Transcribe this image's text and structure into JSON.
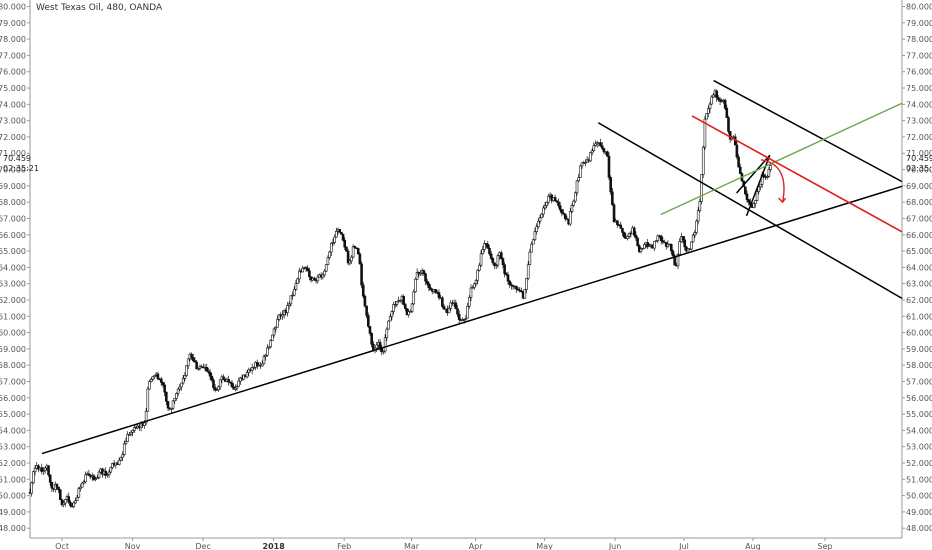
{
  "chart_data": {
    "type": "candlestick",
    "title": "West Texas Oil, 480, OANDA",
    "ylim": [
      47.4,
      80.4
    ],
    "yticks": [
      48.0,
      49.0,
      50.0,
      51.0,
      52.0,
      53.0,
      54.0,
      55.0,
      56.0,
      57.0,
      58.0,
      59.0,
      60.0,
      61.0,
      62.0,
      63.0,
      64.0,
      65.0,
      66.0,
      67.0,
      68.0,
      69.0,
      70.0,
      71.0,
      72.0,
      73.0,
      74.0,
      75.0,
      76.0,
      77.0,
      78.0,
      79.0,
      80.0
    ],
    "ytick_labels": [
      "48.000",
      "49.000",
      "50.000",
      "51.000",
      "52.000",
      "53.000",
      "54.000",
      "55.000",
      "56.000",
      "57.000",
      "58.000",
      "59.000",
      "60.000",
      "61.000",
      "62.000",
      "63.000",
      "64.000",
      "65.000",
      "66.000",
      "67.000",
      "68.000",
      "69.000",
      "70.000",
      "71.000",
      "72.000",
      "73.000",
      "74.000",
      "75.000",
      "76.000",
      "77.000",
      "78.000",
      "79.000",
      "80.000"
    ],
    "xlim": [
      0,
      54.4
    ],
    "xticks": [
      {
        "label": "Oct",
        "t": 2.0
      },
      {
        "label": "Nov",
        "t": 6.4
      },
      {
        "label": "Dec",
        "t": 10.8
      },
      {
        "label": "2018",
        "t": 15.2,
        "bold": true
      },
      {
        "label": "Feb",
        "t": 19.6
      },
      {
        "label": "Mar",
        "t": 23.8
      },
      {
        "label": "Apr",
        "t": 27.8
      },
      {
        "label": "May",
        "t": 32.1
      },
      {
        "label": "Jun",
        "t": 36.5
      },
      {
        "label": "Jul",
        "t": 40.8
      },
      {
        "label": "Aug",
        "t": 45.1
      },
      {
        "label": "Sep",
        "t": 49.6
      }
    ],
    "last_price": "70.459",
    "countdown": "02:35:21",
    "path": [
      [
        0,
        50.2
      ],
      [
        0.3,
        51.8
      ],
      [
        0.7,
        51.5
      ],
      [
        1.0,
        51.9
      ],
      [
        1.3,
        50.5
      ],
      [
        1.7,
        50.6
      ],
      [
        2.0,
        49.5
      ],
      [
        2.3,
        49.9
      ],
      [
        2.6,
        49.2
      ],
      [
        2.9,
        49.8
      ],
      [
        3.1,
        50.5
      ],
      [
        3.4,
        51.1
      ],
      [
        3.7,
        51.4
      ],
      [
        4.0,
        51.0
      ],
      [
        4.4,
        51.5
      ],
      [
        4.8,
        51.2
      ],
      [
        5.2,
        52.0
      ],
      [
        5.6,
        52.0
      ],
      [
        6.0,
        53.5
      ],
      [
        6.4,
        54.0
      ],
      [
        6.8,
        54.2
      ],
      [
        7.2,
        54.5
      ],
      [
        7.4,
        57.0
      ],
      [
        7.8,
        57.4
      ],
      [
        8.2,
        57.0
      ],
      [
        8.6,
        55.5
      ],
      [
        8.8,
        55.2
      ],
      [
        9.0,
        56.0
      ],
      [
        9.3,
        56.5
      ],
      [
        9.6,
        57.3
      ],
      [
        10.0,
        58.7
      ],
      [
        10.4,
        57.8
      ],
      [
        10.8,
        57.9
      ],
      [
        11.2,
        57.4
      ],
      [
        11.6,
        56.2
      ],
      [
        12.0,
        57.3
      ],
      [
        12.4,
        57.0
      ],
      [
        12.8,
        56.5
      ],
      [
        13.2,
        57.3
      ],
      [
        13.6,
        57.5
      ],
      [
        14.0,
        58.0
      ],
      [
        14.4,
        58.0
      ],
      [
        14.8,
        58.9
      ],
      [
        15.2,
        60.0
      ],
      [
        15.6,
        61.1
      ],
      [
        16.0,
        61.4
      ],
      [
        16.4,
        62.5
      ],
      [
        16.8,
        63.8
      ],
      [
        17.2,
        64.0
      ],
      [
        17.6,
        63.2
      ],
      [
        18.0,
        63.4
      ],
      [
        18.4,
        63.8
      ],
      [
        18.8,
        65.5
      ],
      [
        19.2,
        66.3
      ],
      [
        19.6,
        65.6
      ],
      [
        19.9,
        64.0
      ],
      [
        20.2,
        65.5
      ],
      [
        20.5,
        64.8
      ],
      [
        20.8,
        62.0
      ],
      [
        21.1,
        60.5
      ],
      [
        21.4,
        59.0
      ],
      [
        21.7,
        59.4
      ],
      [
        22.0,
        58.6
      ],
      [
        22.3,
        60.6
      ],
      [
        22.6,
        61.5
      ],
      [
        22.9,
        62.0
      ],
      [
        23.2,
        62.2
      ],
      [
        23.5,
        61.2
      ],
      [
        23.8,
        61.5
      ],
      [
        24.1,
        63.5
      ],
      [
        24.5,
        64.0
      ],
      [
        24.8,
        62.8
      ],
      [
        25.2,
        62.6
      ],
      [
        25.6,
        62.0
      ],
      [
        26.0,
        61.2
      ],
      [
        26.4,
        62.0
      ],
      [
        26.8,
        60.8
      ],
      [
        27.2,
        61.0
      ],
      [
        27.5,
        62.6
      ],
      [
        27.8,
        63.2
      ],
      [
        28.1,
        64.6
      ],
      [
        28.4,
        65.5
      ],
      [
        28.7,
        64.6
      ],
      [
        29.0,
        64.0
      ],
      [
        29.3,
        64.9
      ],
      [
        29.6,
        63.6
      ],
      [
        30.0,
        63.0
      ],
      [
        30.4,
        62.8
      ],
      [
        30.8,
        62.2
      ],
      [
        31.2,
        65.0
      ],
      [
        31.6,
        66.6
      ],
      [
        32.0,
        67.6
      ],
      [
        32.4,
        68.3
      ],
      [
        32.8,
        68.0
      ],
      [
        33.2,
        67.4
      ],
      [
        33.6,
        66.8
      ],
      [
        34.0,
        68.6
      ],
      [
        34.4,
        70.4
      ],
      [
        34.8,
        70.5
      ],
      [
        35.2,
        71.4
      ],
      [
        35.6,
        71.6
      ],
      [
        36.0,
        70.8
      ],
      [
        36.4,
        67.0
      ],
      [
        36.8,
        66.4
      ],
      [
        37.2,
        65.7
      ],
      [
        37.6,
        66.4
      ],
      [
        38.0,
        65.0
      ],
      [
        38.4,
        65.4
      ],
      [
        38.8,
        65.2
      ],
      [
        39.2,
        66.0
      ],
      [
        39.6,
        65.4
      ],
      [
        40.0,
        65.2
      ],
      [
        40.3,
        63.8
      ],
      [
        40.6,
        66.0
      ],
      [
        40.9,
        65.0
      ],
      [
        41.2,
        65.3
      ],
      [
        41.5,
        66.4
      ],
      [
        41.8,
        68.0
      ],
      [
        42.1,
        73.0
      ],
      [
        42.4,
        73.9
      ],
      [
        42.7,
        74.9
      ],
      [
        43.0,
        74.0
      ],
      [
        43.3,
        74.4
      ],
      [
        43.6,
        72.0
      ],
      [
        43.9,
        72.0
      ],
      [
        44.2,
        70.0
      ],
      [
        44.5,
        69.0
      ],
      [
        44.8,
        68.0
      ],
      [
        45.1,
        67.8
      ],
      [
        45.4,
        68.6
      ],
      [
        45.7,
        69.6
      ],
      [
        46.0,
        69.6
      ],
      [
        46.2,
        70.2
      ]
    ],
    "lines": [
      {
        "name": "long-support",
        "color": "#000000",
        "width": 1.5,
        "pts": [
          [
            0.75,
            52.58
          ],
          [
            54.4,
            68.97
          ]
        ]
      },
      {
        "name": "mid-resistance",
        "color": "#000000",
        "width": 1.5,
        "pts": [
          [
            35.45,
            72.87
          ],
          [
            54.4,
            62.1
          ]
        ]
      },
      {
        "name": "upper-resistance",
        "color": "#000000",
        "width": 1.5,
        "pts": [
          [
            42.65,
            75.46
          ],
          [
            54.4,
            69.26
          ]
        ]
      },
      {
        "name": "wedge-lower",
        "color": "#000000",
        "width": 1.5,
        "pts": [
          [
            44.7,
            67.16
          ],
          [
            46.15,
            70.87
          ]
        ]
      },
      {
        "name": "wedge-upper",
        "color": "#000000",
        "width": 1.5,
        "pts": [
          [
            44.08,
            68.56
          ],
          [
            46.15,
            70.87
          ]
        ]
      },
      {
        "name": "green-channel",
        "color": "#6aa84f",
        "width": 1.4,
        "pts": [
          [
            39.35,
            67.24
          ],
          [
            54.4,
            74.07
          ]
        ]
      },
      {
        "name": "red-channel",
        "color": "#e0201a",
        "width": 1.6,
        "pts": [
          [
            41.3,
            73.29
          ],
          [
            54.4,
            66.18
          ]
        ]
      }
    ]
  }
}
